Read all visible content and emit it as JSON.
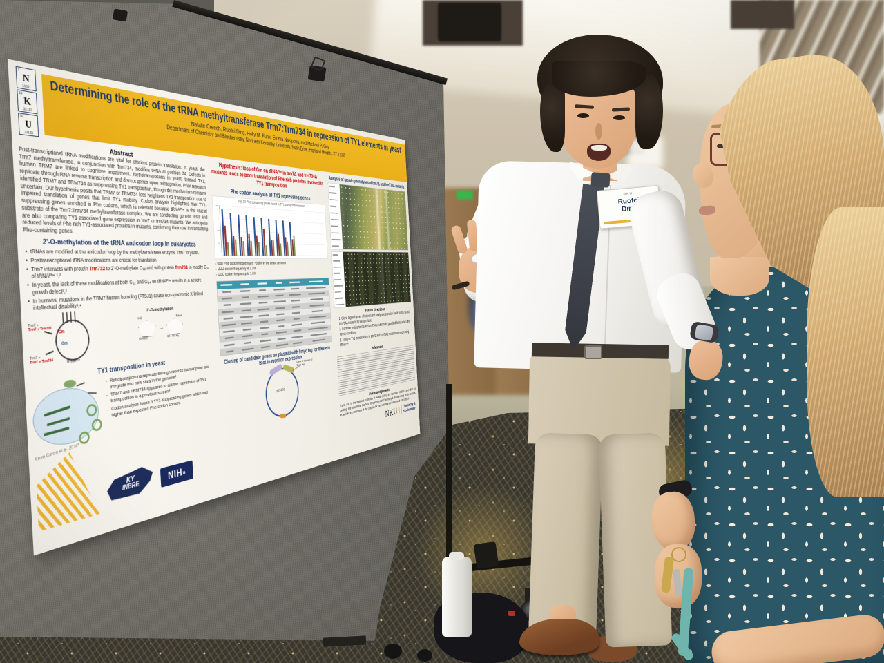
{
  "colors": {
    "poster_band": "#eeb51f",
    "navy": "#1f3864",
    "hypothesis_red": "#c00000",
    "table_header_teal": "#3e96ac",
    "board_gray": "#75736c",
    "dress_teal": "#2c5766"
  },
  "poster": {
    "element_logo": {
      "elements": [
        {
          "symbol": "N",
          "number": "7",
          "mass": "14.007"
        },
        {
          "symbol": "K",
          "number": "19",
          "mass": "39.102"
        },
        {
          "symbol": "U",
          "number": "92",
          "mass": "238.03"
        }
      ]
    },
    "title": "Determining the role of the tRNA methyltransferase Trm7:Trm734 in repression of TY1 elements in yeast",
    "authors": "Natalie Creech, Ruofei Ding, Holly M. Funk, Emma Nasipova, and Michael P. Guy",
    "affiliation": "Department of Chemistry and Biochemistry, Northern Kentucky University, Nunn Drive, Highland Heights, KY 41099",
    "abstract": {
      "heading": "Abstract",
      "text": "Post-transcriptional tRNA modifications are vital for efficient protein translation. In yeast, the Trm7 methyltransferase, in conjunction with Trm734, modifies tRNA at position 34. Defects in human TRM7 are linked to cognitive impairment. Retrotransposons in yeast, termed TY1, replicate through RNA reverse transcription and disrupt genes upon reintegration. Prior research identified TRM7 and TRM734 as suppressing TY1 transposition, though the mechanism remains uncertain. Our hypothesis posits that TRM7 or TRM734 loss heightens TY1 transposition due to impaired translation of genes that limit TY1 mobility. Codon analysis highlighted five TY1-suppressing genes enriched in Phe codons, which is relevant because tRNAᴾʰᵉ is the crucial substrate of the Trm7:Trm734 methyltransferase complex. We are conducting genetic tests and are also comparing TY1-associated gene expression in trm7 or trm734 mutants. We anticipate reduced levels of Phe-rich TY1-associated proteins in mutants, confirming their role in translating Phe-containing genes."
    },
    "methylation": {
      "heading": "2'-O-methylation of the tRNA anticodon loop in eukaryotes",
      "bullet1": "tRNAs are modified at the anticodon loop by the methyltransferase enzyme Trm7 in yeast.",
      "bullet2": "Posttranscriptional tRNA modifications are critical for translation",
      "bullet3_pre": "Trm7 interacts with protein ",
      "bullet3_red1": "Trm732",
      "bullet3_mid": " to 2'-O-methylate C₃₂ and with protein ",
      "bullet3_red2": "Trm734",
      "bullet3_post": " to modify G₃₄ of tRNAᴾʰᵉ ¹,²",
      "bullet4": "In yeast, the lack of these modifications at both C₃₂ and G₃₄ on tRNAᴾʰᵉ results in a severe growth defect¹,²",
      "bullet5": "In humans, mutations in the TRM7 human homolog (FTSJ1) cause non-syndromic X-linked intellectual disability³,⁴"
    },
    "trna_diagram": {
      "enzyme_top": "Trm7 + Trm732",
      "enzyme_bottom": "Trm7 + Trm734",
      "cm": "Cm",
      "gm": "Gm",
      "caption": "tRNAᴾʰᵉ"
    },
    "ribose_diagram": {
      "title": "2'-O-methylation",
      "ho": "HO",
      "base": "Base",
      "left_bottom": "OH   OH",
      "right_bottom": "OH   OCH₃"
    },
    "ty1": {
      "heading": "TY1 transposition in yeast",
      "bullet1": "Retrotransposons replicate through reverse transcription and integrate into new sites in the genome³",
      "bullet2": "TRM7 and TRM734 appeared to aid the repression of TY1 transposition in a previous screen⁵",
      "bullet3": "Codon analysis found 5 TY1-suppressing genes which had higher than expected Phe codon content",
      "caption": "From Curcio et al. 2014³"
    },
    "hypothesis": "Hypothesis: loss of Gm on tRNAᴾʰᵉ in trm7Δ and trm734Δ mutants leads to poor translation of Phe-rich proteins involved in TY1 transposition",
    "phe_heading": "Phe codon analysis of TY1 repressing genes",
    "table": {
      "rows": 10,
      "cols": 6
    },
    "cloning_heading": "Cloning of candidate genes on plasmid with 9myc tag for Western Blot to monitor expression",
    "plasmid": {
      "name": "pRS426",
      "annotation": "Gene of interest w/ 9myc tag"
    },
    "growth_heading": "Analysis of growth phenotypes of trm7Δ and trm734Δ mutants",
    "future": {
      "heading": "Future Directions",
      "item1": "1. Clone tagged genes of interest and analyze expression levels in trm7Δ and trm734Δ mutants by western blot",
      "item2": "2. Continue testing trm7Δ and trm734Δ mutants for growth defects under other stress conditions",
      "item3": "3. Analyze TY1 transposition in trm7Δ and trm734Δ mutants overexpressing tRNAᴾʰᵉ"
    },
    "references_heading": "References",
    "acknowledgements": {
      "heading": "Acknowledgements",
      "text": "Thank you to the National Institutes of Health (NIH), the Kentucky INBRE, and NKU for funding. We also thank the NKU Department of Chemistry & Biochemistry for its support, as well as the members of the Guy lab for their assistance throughout this project."
    },
    "logos": {
      "ky": "KY",
      "inbre": "INBRE",
      "nih": "NIH",
      "nku": "NKU",
      "nku_torch": "|",
      "dept_line1": "Chemistry &",
      "dept_line2": "Biochemistry"
    }
  },
  "name_tag": {
    "org": "NKU",
    "line1": "Ruofei",
    "line2": "Ding"
  },
  "chart_data": {
    "type": "bar",
    "title": "Phe codon analysis of TY1 repressing genes",
    "subtitle": "Top 10 Phe containing genes found in TY1 transposition screen",
    "categories": [
      "",
      "",
      "",
      "",
      "",
      "",
      "",
      "",
      "",
      ""
    ],
    "series": [
      {
        "name": "Total Phe codons",
        "color": "#2f5496",
        "values": [
          9.2,
          8.6,
          8.4,
          8.2,
          8.0,
          7.9,
          7.8,
          7.7,
          7.6,
          7.4
        ]
      },
      {
        "name": "UUU",
        "color": "#8e3a3a",
        "values": [
          6.0,
          4.0,
          3.8,
          4.4,
          4.2,
          5.6,
          3.4,
          4.6,
          4.0,
          3.6
        ]
      },
      {
        "name": "UUC",
        "color": "#7f9150",
        "values": [
          2.6,
          3.2,
          2.9,
          3.0,
          2.8,
          2.2,
          3.4,
          2.6,
          3.0,
          4.4
        ]
      }
    ],
    "ylim": [
      0,
      10
    ],
    "xlabel": "",
    "ylabel": "",
    "grid": true,
    "legend_position": "none",
    "notes": [
      "- total Phe codon frequency is ~3.8% in the yeast genome",
      "- UUU codon frequency is 2.2%",
      "- UUC codon frequency is 1.6%"
    ]
  }
}
